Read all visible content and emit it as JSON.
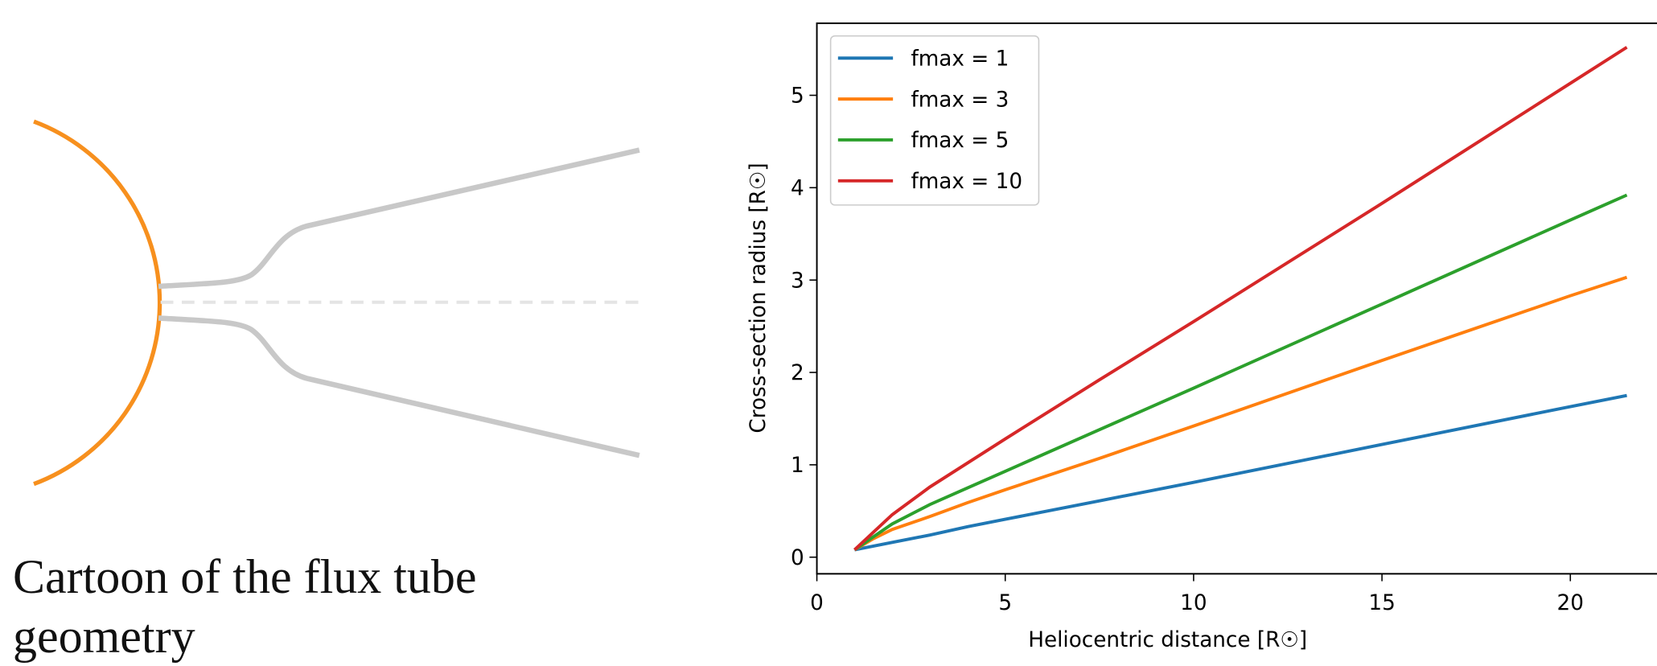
{
  "caption": "Cartoon of the flux tube geometry",
  "chart_data": {
    "type": "line",
    "xlabel": "Heliocentric distance [R☉]",
    "ylabel": "Cross-section radius [R☉]",
    "x": [
      1,
      1.5,
      2,
      3,
      4,
      5,
      7.5,
      10,
      15,
      20,
      21.5
    ],
    "series": [
      {
        "name": "fmax = 1",
        "color": "#1f77b4",
        "values": [
          0.08,
          0.12,
          0.16,
          0.24,
          0.33,
          0.41,
          0.61,
          0.81,
          1.22,
          1.63,
          1.75
        ]
      },
      {
        "name": "fmax = 3",
        "color": "#ff7f0e",
        "values": [
          0.08,
          0.2,
          0.3,
          0.44,
          0.59,
          0.73,
          1.07,
          1.42,
          2.13,
          2.83,
          3.03
        ]
      },
      {
        "name": "fmax = 5",
        "color": "#2ca02c",
        "values": [
          0.08,
          0.22,
          0.36,
          0.57,
          0.75,
          0.93,
          1.38,
          1.83,
          2.74,
          3.65,
          3.92
        ]
      },
      {
        "name": "fmax = 10",
        "color": "#d62728",
        "values": [
          0.08,
          0.27,
          0.46,
          0.76,
          1.02,
          1.28,
          1.92,
          2.55,
          3.83,
          5.13,
          5.52
        ]
      }
    ],
    "xlim": [
      0,
      22.3
    ],
    "xticks": [
      0,
      5,
      10,
      15,
      20
    ],
    "ylim": [
      -0.18,
      5.78
    ],
    "yticks": [
      0,
      1,
      2,
      3,
      4,
      5
    ],
    "legend": "upper left"
  }
}
